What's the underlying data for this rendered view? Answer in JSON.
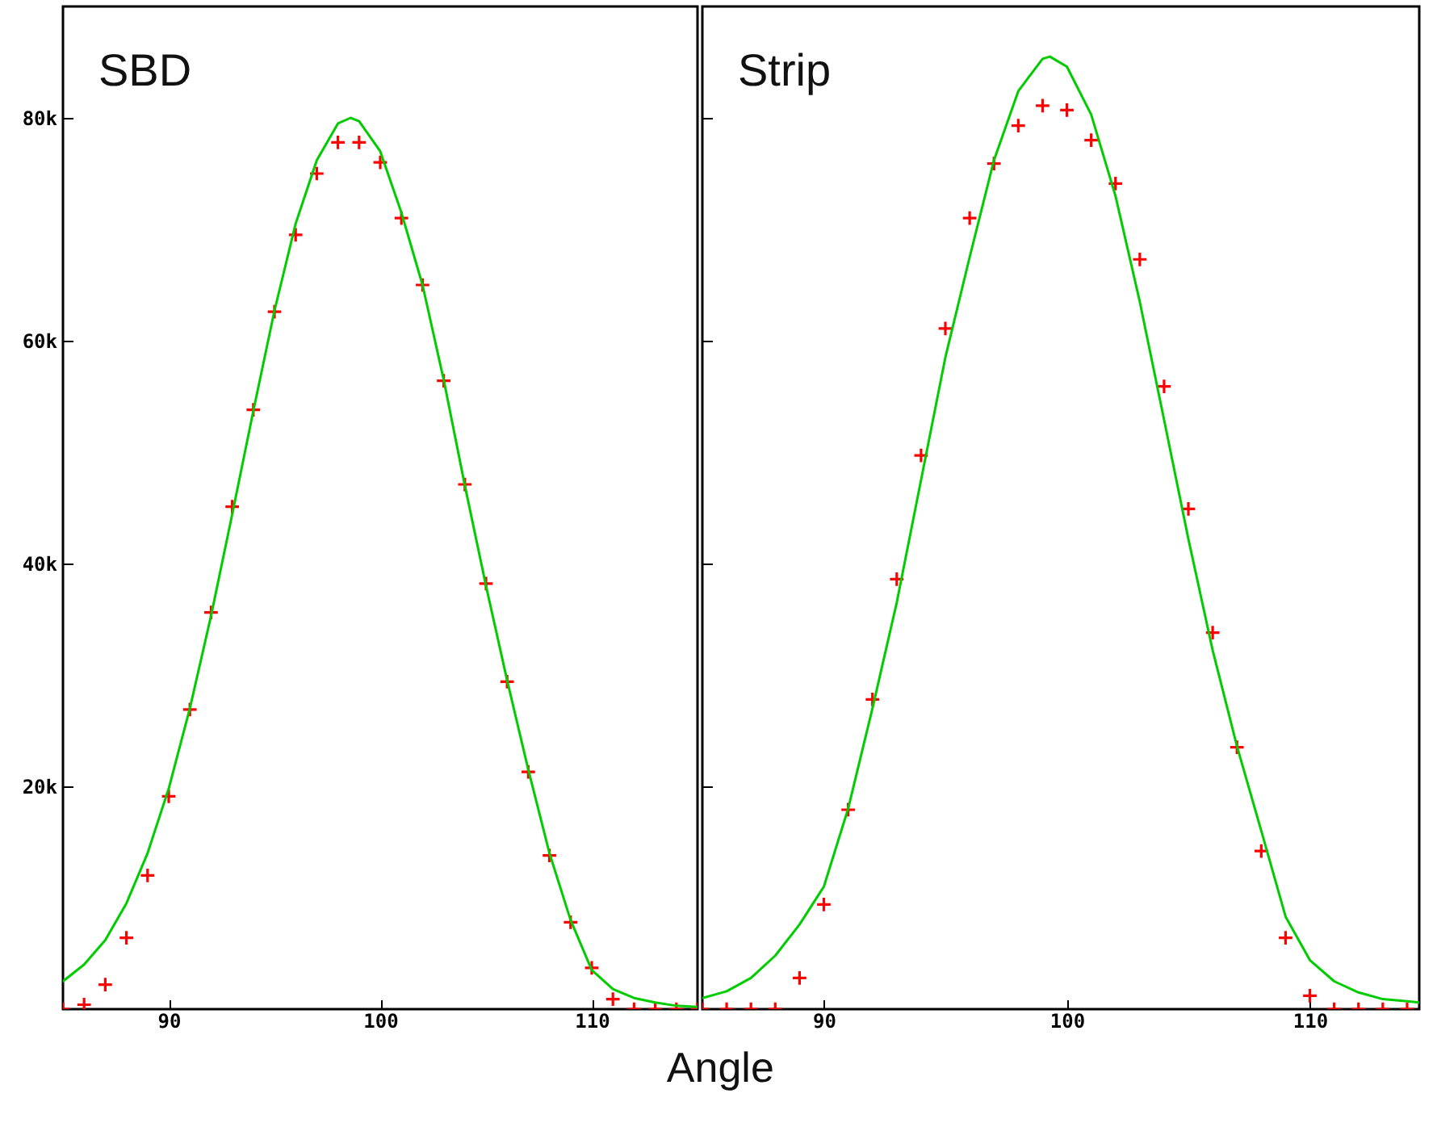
{
  "chart_data": [
    {
      "type": "scatter",
      "title": "SBD",
      "xlabel": "Angle",
      "xlim": [
        85,
        115
      ],
      "xticks": [
        90,
        100,
        110
      ],
      "ylim": [
        0,
        90000
      ],
      "yticks": [
        {
          "value": 20000,
          "label": "20k"
        },
        {
          "value": 40000,
          "label": "40k"
        },
        {
          "value": 60000,
          "label": "60k"
        },
        {
          "value": 80000,
          "label": "80k"
        }
      ],
      "grid": false,
      "series": [
        {
          "color": "#ff0000",
          "marker": "cross",
          "x": [
            85,
            86,
            87,
            88,
            89,
            90,
            91,
            92,
            93,
            94,
            95,
            96,
            97,
            98,
            99,
            100,
            101,
            102,
            103,
            104,
            105,
            106,
            107,
            108,
            109,
            110,
            111,
            112,
            113,
            114,
            115
          ],
          "values": [
            0,
            400,
            2200,
            6400,
            12000,
            19100,
            26900,
            35600,
            45100,
            53800,
            62600,
            69500,
            75000,
            77800,
            77800,
            76000,
            71000,
            65000,
            56400,
            47100,
            38200,
            29400,
            21300,
            13800,
            7800,
            3700,
            900,
            0,
            0,
            0,
            0
          ]
        },
        {
          "type": "line",
          "color": "#00cc00",
          "line_style": "solid",
          "x": [
            85,
            86,
            87,
            88,
            89,
            90,
            91,
            92,
            93,
            94,
            95,
            96,
            97,
            98,
            98.6,
            99,
            100,
            101,
            102,
            103,
            104,
            105,
            106,
            107,
            108,
            109,
            110,
            111,
            112,
            113,
            114,
            115
          ],
          "values": [
            2500,
            4000,
            6200,
            9500,
            14000,
            19800,
            27000,
            35300,
            44400,
            53700,
            62700,
            70500,
            76200,
            79500,
            80000,
            79700,
            77000,
            71500,
            65000,
            56500,
            47000,
            38000,
            29500,
            21500,
            14000,
            8000,
            3500,
            1800,
            1000,
            600,
            300,
            200
          ]
        }
      ]
    },
    {
      "type": "scatter",
      "title": "Strip",
      "xlim": [
        85,
        114.5
      ],
      "xticks": [
        90,
        100,
        110
      ],
      "ylim": [
        0,
        90000
      ],
      "yticks": [
        20000,
        40000,
        60000,
        80000
      ],
      "grid": false,
      "tick_labels": "x",
      "series": [
        {
          "color": "#ff0000",
          "marker": "cross",
          "x": [
            85,
            86,
            87,
            88,
            89,
            90,
            91,
            92,
            93,
            94,
            95,
            96,
            97,
            98,
            99,
            100,
            101,
            102,
            103,
            104,
            105,
            106,
            107,
            108,
            109,
            110,
            111,
            112,
            113,
            114
          ],
          "values": [
            0,
            0,
            0,
            0,
            2800,
            9400,
            17900,
            27800,
            38600,
            49700,
            61100,
            71000,
            75900,
            79300,
            81100,
            80700,
            78000,
            74100,
            67300,
            55900,
            44900,
            33800,
            23500,
            14200,
            6400,
            1200,
            0,
            0,
            0,
            0
          ]
        },
        {
          "type": "line",
          "color": "#00cc00",
          "line_style": "solid",
          "x": [
            85,
            86,
            87,
            88,
            89,
            90,
            91,
            92,
            93,
            94,
            95,
            96,
            97,
            98,
            99,
            99.3,
            100,
            101,
            102,
            103,
            104,
            105,
            106,
            107,
            108,
            109,
            110,
            111,
            112,
            113,
            114,
            114.5
          ],
          "values": [
            1000,
            1600,
            2800,
            4800,
            7600,
            11000,
            18000,
            27000,
            36500,
            47500,
            58500,
            67500,
            76200,
            82400,
            85300,
            85500,
            84600,
            80300,
            73000,
            63500,
            52900,
            42200,
            32200,
            23600,
            16000,
            8300,
            4400,
            2500,
            1500,
            900,
            700,
            600
          ]
        }
      ]
    }
  ]
}
